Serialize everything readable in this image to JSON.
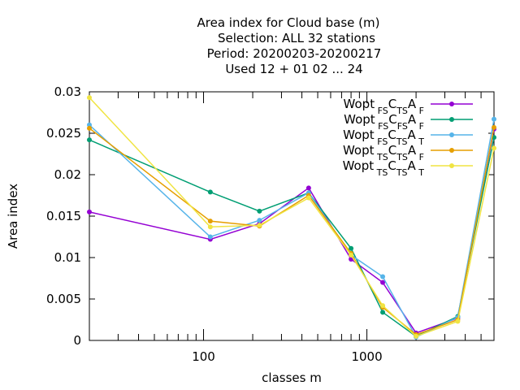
{
  "chart_data": {
    "type": "line",
    "title_lines": [
      "Area index  for Cloud base (m)",
      "Selection: ALL     32 stations",
      "Period: 20200203-20200217",
      "Used  12 + 01 02 ... 24"
    ],
    "xlabel": "classes m",
    "ylabel": "Area index",
    "x_scale": "log",
    "xlim": [
      20,
      6000
    ],
    "ylim": [
      0,
      0.03
    ],
    "x_ticks": [
      {
        "value": 100,
        "label": "100"
      },
      {
        "value": 1000,
        "label": "1000"
      }
    ],
    "y_ticks": [
      {
        "value": 0,
        "label": "0"
      },
      {
        "value": 0.005,
        "label": "0.005"
      },
      {
        "value": 0.01,
        "label": "0.01"
      },
      {
        "value": 0.015,
        "label": "0.015"
      },
      {
        "value": 0.02,
        "label": "0.02"
      },
      {
        "value": 0.025,
        "label": "0.025"
      },
      {
        "value": 0.03,
        "label": "0.03"
      }
    ],
    "grid": false,
    "legend_position": "top-right",
    "x": [
      20,
      110,
      220,
      440,
      800,
      1250,
      2000,
      3600,
      6000
    ],
    "series": [
      {
        "name_main": "Wopt",
        "name_parts": [
          [
            "FS",
            ""
          ],
          [
            "C",
            ""
          ],
          [
            "TS",
            ""
          ],
          [
            "A",
            "F"
          ]
        ],
        "color": "#9400d3",
        "values": [
          0.0155,
          0.0122,
          0.0141,
          0.0184,
          0.0098,
          0.007,
          0.0009,
          0.0027,
          0.0255
        ]
      },
      {
        "name_main": "Wopt",
        "name_parts": [
          [
            "FS",
            ""
          ],
          [
            "C",
            ""
          ],
          [
            "FS",
            ""
          ],
          [
            "A",
            "F"
          ]
        ],
        "color": "#009e73",
        "values": [
          0.0242,
          0.0179,
          0.0156,
          0.0178,
          0.0111,
          0.0034,
          0.0005,
          0.0029,
          0.0245
        ]
      },
      {
        "name_main": "Wopt",
        "name_parts": [
          [
            "FS",
            ""
          ],
          [
            "C",
            ""
          ],
          [
            "TS",
            ""
          ],
          [
            "A",
            "T"
          ]
        ],
        "color": "#56b4e9",
        "values": [
          0.026,
          0.0125,
          0.0145,
          0.0178,
          0.0103,
          0.0077,
          0.0004,
          0.0028,
          0.0267
        ]
      },
      {
        "name_main": "Wopt",
        "name_parts": [
          [
            "TS",
            ""
          ],
          [
            "C",
            ""
          ],
          [
            "TS",
            ""
          ],
          [
            "A",
            "F"
          ]
        ],
        "color": "#e69f00",
        "values": [
          0.0256,
          0.0144,
          0.0138,
          0.0175,
          0.0105,
          0.004,
          0.0007,
          0.0025,
          0.0257
        ]
      },
      {
        "name_main": "Wopt",
        "name_parts": [
          [
            "TS",
            ""
          ],
          [
            "C",
            ""
          ],
          [
            "TS",
            ""
          ],
          [
            "A",
            "T"
          ]
        ],
        "color": "#f0e442",
        "values": [
          0.0293,
          0.0137,
          0.0139,
          0.0172,
          0.0103,
          0.0042,
          0.0005,
          0.0023,
          0.0232
        ]
      }
    ],
    "legend_labels": [
      {
        "main": "Wopt",
        "s1": "FS",
        "c": "C",
        "s2": "TS",
        "a": "A",
        "s3": "F"
      },
      {
        "main": "Wopt",
        "s1": "FS",
        "c": "C",
        "s2": "FS",
        "a": "A",
        "s3": "F"
      },
      {
        "main": "Wopt",
        "s1": "FS",
        "c": "C",
        "s2": "TS",
        "a": "A",
        "s3": "T"
      },
      {
        "main": "Wopt",
        "s1": "TS",
        "c": "C",
        "s2": "TS",
        "a": "A",
        "s3": "F"
      },
      {
        "main": "Wopt",
        "s1": "TS",
        "c": "C",
        "s2": "TS",
        "a": "A",
        "s3": "T"
      }
    ]
  }
}
